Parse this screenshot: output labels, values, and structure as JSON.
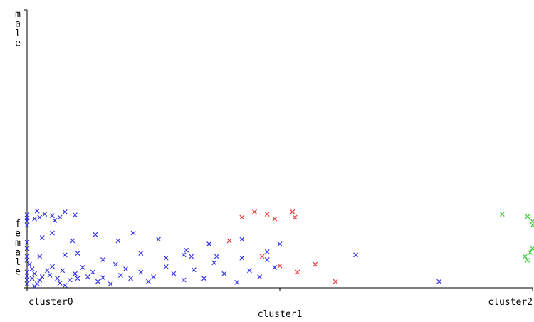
{
  "chart_data": {
    "type": "scatter",
    "title": "",
    "xlabel": "",
    "ylabel": "",
    "x_categories": [
      "cluster0",
      "cluster1",
      "cluster2"
    ],
    "y_categories": [
      "female",
      "male"
    ],
    "marker": "x",
    "grid": false,
    "legend": "none",
    "series": [
      {
        "color": "#3333ee",
        "points": [
          [
            0.0,
            0.93
          ],
          [
            0.04,
            0.98
          ],
          [
            0.0,
            0.89
          ],
          [
            0.03,
            0.88
          ],
          [
            0.05,
            0.9
          ],
          [
            0.07,
            0.94
          ],
          [
            0.1,
            0.92
          ],
          [
            0.11,
            0.86
          ],
          [
            0.13,
            0.9
          ],
          [
            0.15,
            0.97
          ],
          [
            0.19,
            0.93
          ],
          [
            0.0,
            0.35
          ],
          [
            0.01,
            0.3
          ],
          [
            0.02,
            0.24
          ],
          [
            0.03,
            0.18
          ],
          [
            0.0,
            0.15
          ],
          [
            0.02,
            0.12
          ],
          [
            0.05,
            0.1
          ],
          [
            0.04,
            0.05
          ],
          [
            0.03,
            0.02
          ],
          [
            0.06,
            0.14
          ],
          [
            0.08,
            0.22
          ],
          [
            0.09,
            0.16
          ],
          [
            0.1,
            0.27
          ],
          [
            0.12,
            0.12
          ],
          [
            0.14,
            0.22
          ],
          [
            0.13,
            0.06
          ],
          [
            0.15,
            0.03
          ],
          [
            0.17,
            0.1
          ],
          [
            0.19,
            0.18
          ],
          [
            0.2,
            0.12
          ],
          [
            0.22,
            0.26
          ],
          [
            0.24,
            0.14
          ],
          [
            0.26,
            0.2
          ],
          [
            0.28,
            0.08
          ],
          [
            0.3,
            0.13
          ],
          [
            0.33,
            0.05
          ],
          [
            0.35,
            0.3
          ],
          [
            0.37,
            0.16
          ],
          [
            0.39,
            0.24
          ],
          [
            0.41,
            0.12
          ],
          [
            0.45,
            0.2
          ],
          [
            0.48,
            0.08
          ],
          [
            0.5,
            0.14
          ],
          [
            0.55,
            0.27
          ],
          [
            0.58,
            0.18
          ],
          [
            0.62,
            0.1
          ],
          [
            0.66,
            0.23
          ],
          [
            0.7,
            0.12
          ],
          [
            0.74,
            0.32
          ],
          [
            0.78,
            0.18
          ],
          [
            0.83,
            0.07
          ],
          [
            0.88,
            0.22
          ],
          [
            0.92,
            0.14
          ],
          [
            0.98,
            0.26
          ],
          [
            0.0,
            0.58
          ],
          [
            0.06,
            0.64
          ],
          [
            0.1,
            0.7
          ],
          [
            0.0,
            0.8
          ],
          [
            0.18,
            0.6
          ],
          [
            0.27,
            0.68
          ],
          [
            0.36,
            0.6
          ],
          [
            0.42,
            0.7
          ],
          [
            0.52,
            0.62
          ],
          [
            0.63,
            0.48
          ],
          [
            0.72,
            0.56
          ],
          [
            0.85,
            0.62
          ],
          [
            0.95,
            0.46
          ],
          [
            1.0,
            0.56
          ],
          [
            1.3,
            0.42
          ],
          [
            1.63,
            0.08
          ],
          [
            0.0,
            0.86
          ],
          [
            0.05,
            0.4
          ],
          [
            0.15,
            0.42
          ],
          [
            0.2,
            0.44
          ],
          [
            0.3,
            0.36
          ],
          [
            0.45,
            0.44
          ],
          [
            0.55,
            0.38
          ],
          [
            0.65,
            0.4
          ],
          [
            0.75,
            0.4
          ],
          [
            0.85,
            0.38
          ],
          [
            0.95,
            0.36
          ],
          [
            0.62,
            0.42
          ],
          [
            0.0,
            0.2
          ],
          [
            0.0,
            0.1
          ],
          [
            0.0,
            0.05
          ],
          [
            0.0,
            0.4
          ],
          [
            0.0,
            0.5
          ]
        ]
      },
      {
        "color": "#ee3333",
        "points": [
          [
            0.85,
            0.9
          ],
          [
            0.9,
            0.97
          ],
          [
            0.95,
            0.94
          ],
          [
            0.98,
            0.88
          ],
          [
            1.05,
            0.97
          ],
          [
            1.06,
            0.9
          ],
          [
            0.8,
            0.6
          ],
          [
            0.93,
            0.4
          ],
          [
            1.0,
            0.28
          ],
          [
            1.07,
            0.2
          ],
          [
            1.14,
            0.3
          ],
          [
            1.22,
            0.08
          ]
        ]
      },
      {
        "color": "#33cc33",
        "points": [
          [
            1.88,
            0.94
          ],
          [
            1.98,
            0.91
          ],
          [
            2.0,
            0.8
          ],
          [
            2.0,
            0.85
          ],
          [
            1.97,
            0.4
          ],
          [
            1.99,
            0.45
          ],
          [
            2.0,
            0.5
          ],
          [
            1.98,
            0.35
          ]
        ]
      }
    ]
  }
}
